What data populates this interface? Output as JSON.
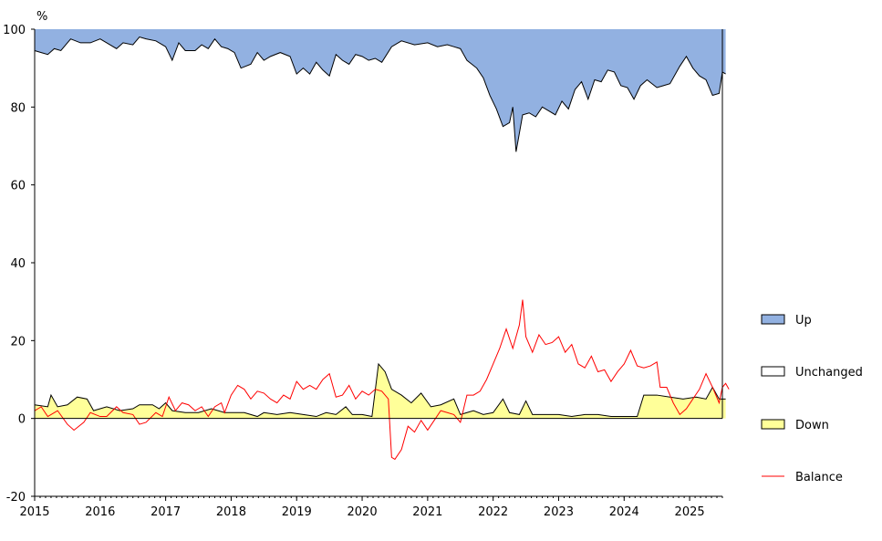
{
  "chart_data": {
    "type": "area",
    "ylabel": "%",
    "ylim": [
      -20,
      100
    ],
    "yticks": [
      "100",
      "80",
      "60",
      "40",
      "20",
      "0",
      "-20"
    ],
    "ytick_values": [
      100,
      80,
      60,
      40,
      20,
      0,
      -20
    ],
    "xlim": [
      2015,
      2025.5
    ],
    "xticks": [
      "2015",
      "2016",
      "2017",
      "2018",
      "2019",
      "2020",
      "2021",
      "2022",
      "2023",
      "2024",
      "2025"
    ],
    "xtick_values": [
      2015,
      2016,
      2017,
      2018,
      2019,
      2020,
      2021,
      2022,
      2023,
      2024,
      2025
    ],
    "grid": false,
    "legend_position": "right",
    "colors": {
      "up": "#92b1e1",
      "unchanged": "#ffffff",
      "down": "#ffff99",
      "balance": "#ff0000",
      "outline": "#000000"
    },
    "legend": [
      {
        "label": "Up",
        "key": "up",
        "style": "box"
      },
      {
        "label": "Unchanged",
        "key": "unchanged",
        "style": "box"
      },
      {
        "label": "Down",
        "key": "down",
        "style": "box"
      },
      {
        "label": "Balance",
        "key": "balance",
        "style": "line"
      }
    ],
    "series": [
      {
        "name": "Down",
        "points": [
          [
            2015.0,
            3.5
          ],
          [
            2015.2,
            3.0
          ],
          [
            2015.25,
            6.0
          ],
          [
            2015.35,
            3.0
          ],
          [
            2015.5,
            3.5
          ],
          [
            2015.65,
            5.5
          ],
          [
            2015.8,
            5.0
          ],
          [
            2015.9,
            2.0
          ],
          [
            2016.1,
            3.0
          ],
          [
            2016.3,
            2.0
          ],
          [
            2016.5,
            2.5
          ],
          [
            2016.6,
            3.5
          ],
          [
            2016.8,
            3.5
          ],
          [
            2016.9,
            2.5
          ],
          [
            2017.0,
            4.0
          ],
          [
            2017.1,
            2.0
          ],
          [
            2017.3,
            1.5
          ],
          [
            2017.5,
            1.5
          ],
          [
            2017.7,
            2.5
          ],
          [
            2017.9,
            1.5
          ],
          [
            2018.0,
            1.5
          ],
          [
            2018.2,
            1.5
          ],
          [
            2018.4,
            0.5
          ],
          [
            2018.5,
            1.5
          ],
          [
            2018.7,
            1.0
          ],
          [
            2018.9,
            1.5
          ],
          [
            2019.1,
            1.0
          ],
          [
            2019.3,
            0.5
          ],
          [
            2019.45,
            1.5
          ],
          [
            2019.6,
            1.0
          ],
          [
            2019.75,
            3.0
          ],
          [
            2019.85,
            1.0
          ],
          [
            2020.0,
            1.0
          ],
          [
            2020.15,
            0.5
          ],
          [
            2020.25,
            14.0
          ],
          [
            2020.35,
            12.0
          ],
          [
            2020.45,
            7.5
          ],
          [
            2020.6,
            6.0
          ],
          [
            2020.75,
            4.0
          ],
          [
            2020.9,
            6.5
          ],
          [
            2021.05,
            3.0
          ],
          [
            2021.2,
            3.5
          ],
          [
            2021.4,
            5.0
          ],
          [
            2021.5,
            1.0
          ],
          [
            2021.7,
            2.0
          ],
          [
            2021.85,
            1.0
          ],
          [
            2022.0,
            1.5
          ],
          [
            2022.15,
            5.0
          ],
          [
            2022.25,
            1.5
          ],
          [
            2022.4,
            1.0
          ],
          [
            2022.5,
            4.5
          ],
          [
            2022.6,
            1.0
          ],
          [
            2022.75,
            1.0
          ],
          [
            2023.0,
            1.0
          ],
          [
            2023.2,
            0.5
          ],
          [
            2023.4,
            1.0
          ],
          [
            2023.6,
            1.0
          ],
          [
            2023.8,
            0.5
          ],
          [
            2024.0,
            0.5
          ],
          [
            2024.1,
            0.5
          ],
          [
            2024.2,
            0.5
          ],
          [
            2024.3,
            6.0
          ],
          [
            2024.5,
            6.0
          ],
          [
            2024.7,
            5.5
          ],
          [
            2024.9,
            5.0
          ],
          [
            2025.1,
            5.5
          ],
          [
            2025.25,
            5.0
          ],
          [
            2025.35,
            8.0
          ],
          [
            2025.45,
            5.0
          ],
          [
            2025.55,
            5.0
          ]
        ]
      },
      {
        "name": "Up",
        "points": [
          [
            2015.0,
            94.5
          ],
          [
            2015.1,
            94.0
          ],
          [
            2015.2,
            93.5
          ],
          [
            2015.3,
            95.0
          ],
          [
            2015.4,
            94.5
          ],
          [
            2015.55,
            97.5
          ],
          [
            2015.7,
            96.5
          ],
          [
            2015.85,
            96.5
          ],
          [
            2016.0,
            97.5
          ],
          [
            2016.1,
            96.5
          ],
          [
            2016.25,
            95.0
          ],
          [
            2016.35,
            96.5
          ],
          [
            2016.5,
            96.0
          ],
          [
            2016.6,
            98.0
          ],
          [
            2016.7,
            97.5
          ],
          [
            2016.85,
            97.0
          ],
          [
            2016.95,
            96.0
          ],
          [
            2017.0,
            95.5
          ],
          [
            2017.1,
            92.0
          ],
          [
            2017.2,
            96.5
          ],
          [
            2017.3,
            94.5
          ],
          [
            2017.45,
            94.5
          ],
          [
            2017.55,
            96.0
          ],
          [
            2017.65,
            95.0
          ],
          [
            2017.75,
            97.5
          ],
          [
            2017.85,
            95.5
          ],
          [
            2017.95,
            95.0
          ],
          [
            2018.05,
            94.0
          ],
          [
            2018.15,
            90.0
          ],
          [
            2018.3,
            91.0
          ],
          [
            2018.4,
            94.0
          ],
          [
            2018.5,
            92.0
          ],
          [
            2018.6,
            93.0
          ],
          [
            2018.75,
            94.0
          ],
          [
            2018.9,
            93.0
          ],
          [
            2019.0,
            88.5
          ],
          [
            2019.1,
            90.0
          ],
          [
            2019.2,
            88.5
          ],
          [
            2019.3,
            91.5
          ],
          [
            2019.4,
            89.5
          ],
          [
            2019.5,
            88.0
          ],
          [
            2019.6,
            93.5
          ],
          [
            2019.7,
            92.0
          ],
          [
            2019.8,
            91.0
          ],
          [
            2019.9,
            93.5
          ],
          [
            2020.0,
            93.0
          ],
          [
            2020.1,
            92.0
          ],
          [
            2020.2,
            92.5
          ],
          [
            2020.3,
            91.5
          ],
          [
            2020.45,
            95.5
          ],
          [
            2020.6,
            97.0
          ],
          [
            2020.8,
            96.0
          ],
          [
            2021.0,
            96.5
          ],
          [
            2021.15,
            95.5
          ],
          [
            2021.3,
            96.0
          ],
          [
            2021.4,
            95.5
          ],
          [
            2021.5,
            95.0
          ],
          [
            2021.6,
            92.0
          ],
          [
            2021.75,
            90.0
          ],
          [
            2021.85,
            87.5
          ],
          [
            2021.95,
            83.0
          ],
          [
            2022.05,
            79.5
          ],
          [
            2022.15,
            75.0
          ],
          [
            2022.25,
            76.0
          ],
          [
            2022.3,
            80.0
          ],
          [
            2022.35,
            68.5
          ],
          [
            2022.45,
            78.0
          ],
          [
            2022.55,
            78.5
          ],
          [
            2022.65,
            77.5
          ],
          [
            2022.75,
            80.0
          ],
          [
            2022.85,
            79.0
          ],
          [
            2022.95,
            78.0
          ],
          [
            2023.05,
            81.5
          ],
          [
            2023.15,
            79.5
          ],
          [
            2023.25,
            84.5
          ],
          [
            2023.35,
            86.5
          ],
          [
            2023.45,
            82.0
          ],
          [
            2023.55,
            87.0
          ],
          [
            2023.65,
            86.5
          ],
          [
            2023.75,
            89.5
          ],
          [
            2023.85,
            89.0
          ],
          [
            2023.95,
            85.5
          ],
          [
            2024.05,
            85.0
          ],
          [
            2024.15,
            82.0
          ],
          [
            2024.25,
            85.5
          ],
          [
            2024.35,
            87.0
          ],
          [
            2024.5,
            85.0
          ],
          [
            2024.6,
            85.5
          ],
          [
            2024.7,
            86.0
          ],
          [
            2024.85,
            90.5
          ],
          [
            2024.95,
            93.0
          ],
          [
            2025.05,
            90.0
          ],
          [
            2025.15,
            88.0
          ],
          [
            2025.25,
            87.0
          ],
          [
            2025.35,
            83.0
          ],
          [
            2025.45,
            83.5
          ],
          [
            2025.5,
            89.0
          ],
          [
            2025.55,
            88.5
          ]
        ]
      },
      {
        "name": "Balance",
        "points": [
          [
            2015.0,
            2.0
          ],
          [
            2015.1,
            3.0
          ],
          [
            2015.2,
            0.5
          ],
          [
            2015.35,
            2.0
          ],
          [
            2015.5,
            -1.5
          ],
          [
            2015.6,
            -3.0
          ],
          [
            2015.75,
            -1.0
          ],
          [
            2015.85,
            1.5
          ],
          [
            2016.0,
            0.5
          ],
          [
            2016.1,
            0.5
          ],
          [
            2016.25,
            3.0
          ],
          [
            2016.35,
            1.5
          ],
          [
            2016.5,
            1.0
          ],
          [
            2016.6,
            -1.5
          ],
          [
            2016.7,
            -1.0
          ],
          [
            2016.85,
            1.5
          ],
          [
            2016.95,
            0.5
          ],
          [
            2017.05,
            5.5
          ],
          [
            2017.15,
            2.0
          ],
          [
            2017.25,
            4.0
          ],
          [
            2017.35,
            3.5
          ],
          [
            2017.45,
            2.0
          ],
          [
            2017.55,
            3.0
          ],
          [
            2017.65,
            0.5
          ],
          [
            2017.75,
            3.0
          ],
          [
            2017.85,
            4.0
          ],
          [
            2017.9,
            1.5
          ],
          [
            2018.0,
            6.0
          ],
          [
            2018.1,
            8.5
          ],
          [
            2018.2,
            7.5
          ],
          [
            2018.3,
            5.0
          ],
          [
            2018.4,
            7.0
          ],
          [
            2018.5,
            6.5
          ],
          [
            2018.6,
            5.0
          ],
          [
            2018.7,
            4.0
          ],
          [
            2018.8,
            6.0
          ],
          [
            2018.9,
            5.0
          ],
          [
            2019.0,
            9.5
          ],
          [
            2019.1,
            7.5
          ],
          [
            2019.2,
            8.5
          ],
          [
            2019.3,
            7.5
          ],
          [
            2019.4,
            10.0
          ],
          [
            2019.5,
            11.5
          ],
          [
            2019.6,
            5.5
          ],
          [
            2019.7,
            6.0
          ],
          [
            2019.8,
            8.5
          ],
          [
            2019.9,
            5.0
          ],
          [
            2020.0,
            7.0
          ],
          [
            2020.1,
            6.0
          ],
          [
            2020.2,
            7.5
          ],
          [
            2020.3,
            7.0
          ],
          [
            2020.4,
            5.0
          ],
          [
            2020.45,
            -10.0
          ],
          [
            2020.5,
            -10.5
          ],
          [
            2020.6,
            -8.0
          ],
          [
            2020.7,
            -2.0
          ],
          [
            2020.8,
            -3.5
          ],
          [
            2020.9,
            -0.5
          ],
          [
            2021.0,
            -3.0
          ],
          [
            2021.1,
            -0.5
          ],
          [
            2021.2,
            2.0
          ],
          [
            2021.3,
            1.5
          ],
          [
            2021.4,
            1.0
          ],
          [
            2021.5,
            -1.0
          ],
          [
            2021.6,
            6.0
          ],
          [
            2021.7,
            6.0
          ],
          [
            2021.8,
            7.0
          ],
          [
            2021.9,
            10.0
          ],
          [
            2022.0,
            14.0
          ],
          [
            2022.1,
            18.0
          ],
          [
            2022.2,
            23.0
          ],
          [
            2022.3,
            18.0
          ],
          [
            2022.4,
            24.0
          ],
          [
            2022.45,
            30.5
          ],
          [
            2022.5,
            21.0
          ],
          [
            2022.6,
            17.0
          ],
          [
            2022.7,
            21.5
          ],
          [
            2022.8,
            19.0
          ],
          [
            2022.9,
            19.5
          ],
          [
            2023.0,
            21.0
          ],
          [
            2023.1,
            17.0
          ],
          [
            2023.2,
            19.0
          ],
          [
            2023.3,
            14.0
          ],
          [
            2023.4,
            13.0
          ],
          [
            2023.5,
            16.0
          ],
          [
            2023.6,
            12.0
          ],
          [
            2023.7,
            12.5
          ],
          [
            2023.8,
            9.5
          ],
          [
            2023.9,
            12.0
          ],
          [
            2024.0,
            14.0
          ],
          [
            2024.1,
            17.5
          ],
          [
            2024.2,
            13.5
          ],
          [
            2024.3,
            13.0
          ],
          [
            2024.4,
            13.5
          ],
          [
            2024.5,
            14.5
          ],
          [
            2024.55,
            8.0
          ],
          [
            2024.65,
            8.0
          ],
          [
            2024.75,
            4.0
          ],
          [
            2024.85,
            1.0
          ],
          [
            2024.95,
            2.5
          ],
          [
            2025.05,
            5.0
          ],
          [
            2025.15,
            7.5
          ],
          [
            2025.25,
            11.5
          ],
          [
            2025.35,
            8.0
          ],
          [
            2025.45,
            4.0
          ],
          [
            2025.5,
            8.0
          ],
          [
            2025.55,
            9.0
          ],
          [
            2025.6,
            7.5
          ]
        ]
      }
    ]
  }
}
